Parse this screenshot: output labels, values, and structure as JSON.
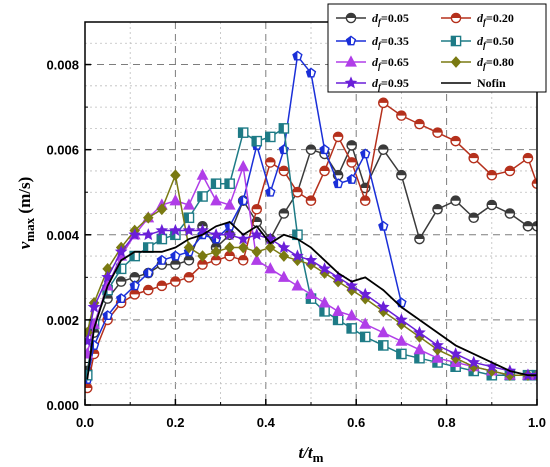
{
  "chart_data": {
    "type": "line",
    "xlabel": "t/t_m",
    "ylabel": "v_max (m/s)",
    "xlim": [
      0.0,
      1.0
    ],
    "ylim": [
      0.0,
      0.009
    ],
    "xticks": [
      0.0,
      0.2,
      0.4,
      0.6,
      0.8,
      1.0
    ],
    "yticks": [
      0.0,
      0.002,
      0.004,
      0.006,
      0.008
    ],
    "xtick_labels": [
      "0.0",
      "0.2",
      "0.4",
      "0.6",
      "0.8",
      "1.0"
    ],
    "ytick_labels": [
      "0.000",
      "0.002",
      "0.004",
      "0.006",
      "0.008"
    ],
    "grid": true,
    "legend_position": "top-right",
    "series": [
      {
        "name": "d_f=0.05",
        "name_var": "d",
        "name_sub": "f",
        "name_val": "=0.05",
        "color": "#3a3a3a",
        "marker": "half-circle",
        "x": [
          0.005,
          0.02,
          0.05,
          0.08,
          0.11,
          0.14,
          0.17,
          0.2,
          0.23,
          0.26,
          0.29,
          0.32,
          0.35,
          0.38,
          0.41,
          0.44,
          0.47,
          0.5,
          0.53,
          0.56,
          0.59,
          0.62,
          0.66,
          0.7,
          0.74,
          0.78,
          0.82,
          0.86,
          0.9,
          0.94,
          0.98,
          1.0
        ],
        "y": [
          0.0008,
          0.0017,
          0.0025,
          0.0029,
          0.003,
          0.0031,
          0.0033,
          0.0033,
          0.0034,
          0.0042,
          0.0037,
          0.004,
          0.0048,
          0.0043,
          0.0039,
          0.0045,
          0.005,
          0.006,
          0.0059,
          0.0054,
          0.0061,
          0.0051,
          0.006,
          0.0054,
          0.0039,
          0.0046,
          0.0048,
          0.0044,
          0.0047,
          0.0045,
          0.0042,
          0.0042
        ]
      },
      {
        "name": "d_f=0.20",
        "name_var": "d",
        "name_sub": "f",
        "name_val": "=0.20",
        "color": "#b5301c",
        "marker": "half-circle",
        "x": [
          0.005,
          0.02,
          0.05,
          0.08,
          0.11,
          0.14,
          0.17,
          0.2,
          0.23,
          0.26,
          0.29,
          0.32,
          0.35,
          0.38,
          0.41,
          0.44,
          0.47,
          0.5,
          0.53,
          0.56,
          0.59,
          0.62,
          0.66,
          0.7,
          0.74,
          0.78,
          0.82,
          0.86,
          0.9,
          0.94,
          0.98,
          1.0
        ],
        "y": [
          0.0004,
          0.0012,
          0.002,
          0.0024,
          0.0026,
          0.0027,
          0.0028,
          0.0029,
          0.003,
          0.0033,
          0.0034,
          0.0035,
          0.0034,
          0.0046,
          0.0057,
          0.0055,
          0.005,
          0.0048,
          0.0055,
          0.0063,
          0.0057,
          0.0048,
          0.0071,
          0.0068,
          0.0066,
          0.0064,
          0.0062,
          0.0058,
          0.0054,
          0.0055,
          0.0058,
          0.0052
        ]
      },
      {
        "name": "d_f=0.35",
        "name_var": "d",
        "name_sub": "f",
        "name_val": "=0.35",
        "color": "#1a2fd8",
        "marker": "pentagon",
        "x": [
          0.005,
          0.02,
          0.05,
          0.08,
          0.11,
          0.14,
          0.17,
          0.2,
          0.23,
          0.26,
          0.29,
          0.32,
          0.35,
          0.38,
          0.41,
          0.44,
          0.47,
          0.5,
          0.53,
          0.56,
          0.59,
          0.62,
          0.66,
          0.7
        ],
        "y": [
          0.0006,
          0.0014,
          0.0021,
          0.0025,
          0.0028,
          0.0031,
          0.0034,
          0.0035,
          0.0036,
          0.004,
          0.0039,
          0.0042,
          0.0048,
          0.0061,
          0.005,
          0.006,
          0.0082,
          0.0078,
          0.006,
          0.0052,
          0.0053,
          0.0059,
          0.0042,
          0.0024
        ]
      },
      {
        "name": "d_f=0.50",
        "name_var": "d",
        "name_sub": "f",
        "name_val": "=0.50",
        "color": "#1e7b86",
        "marker": "half-square",
        "x": [
          0.005,
          0.02,
          0.05,
          0.08,
          0.11,
          0.14,
          0.17,
          0.2,
          0.23,
          0.26,
          0.29,
          0.32,
          0.35,
          0.38,
          0.41,
          0.44,
          0.47,
          0.5,
          0.53,
          0.56,
          0.59,
          0.62,
          0.66,
          0.7,
          0.74,
          0.78,
          0.82,
          0.86,
          0.9,
          0.94,
          0.98,
          1.0
        ],
        "y": [
          0.0007,
          0.0019,
          0.0027,
          0.0032,
          0.0035,
          0.0037,
          0.0039,
          0.004,
          0.0044,
          0.0049,
          0.0052,
          0.0052,
          0.0064,
          0.0062,
          0.0063,
          0.0065,
          0.004,
          0.0025,
          0.0022,
          0.002,
          0.0018,
          0.0016,
          0.0014,
          0.0012,
          0.0011,
          0.001,
          0.0009,
          0.0008,
          0.0007,
          0.0007,
          0.0007,
          0.0007
        ]
      },
      {
        "name": "d_f=0.65",
        "name_var": "d",
        "name_sub": "f",
        "name_val": "=0.65",
        "color": "#b03ee8",
        "marker": "triangle",
        "x": [
          0.005,
          0.02,
          0.05,
          0.08,
          0.11,
          0.14,
          0.17,
          0.2,
          0.23,
          0.26,
          0.29,
          0.32,
          0.35,
          0.38,
          0.41,
          0.44,
          0.47,
          0.5,
          0.53,
          0.56,
          0.59,
          0.62,
          0.66,
          0.7,
          0.74,
          0.78,
          0.82,
          0.86,
          0.9,
          0.94,
          0.98,
          1.0
        ],
        "y": [
          0.0012,
          0.0019,
          0.0028,
          0.0035,
          0.004,
          0.0044,
          0.0047,
          0.0048,
          0.0047,
          0.0054,
          0.0048,
          0.0047,
          0.0056,
          0.0034,
          0.0032,
          0.003,
          0.0028,
          0.0026,
          0.0024,
          0.0022,
          0.0021,
          0.0019,
          0.0017,
          0.0015,
          0.0013,
          0.0011,
          0.001,
          0.0009,
          0.0008,
          0.0007,
          0.0007,
          0.0007
        ]
      },
      {
        "name": "d_f=0.80",
        "name_var": "d",
        "name_sub": "f",
        "name_val": "=0.80",
        "color": "#7a7a12",
        "marker": "diamond",
        "x": [
          0.005,
          0.02,
          0.05,
          0.08,
          0.11,
          0.14,
          0.17,
          0.2,
          0.23,
          0.26,
          0.29,
          0.32,
          0.35,
          0.38,
          0.41,
          0.44,
          0.47,
          0.5,
          0.53,
          0.56,
          0.59,
          0.62,
          0.66,
          0.7,
          0.74,
          0.78,
          0.82,
          0.86,
          0.9,
          0.94,
          0.98,
          1.0
        ],
        "y": [
          0.0017,
          0.0024,
          0.0032,
          0.0037,
          0.0041,
          0.0044,
          0.0046,
          0.0054,
          0.0037,
          0.0035,
          0.0036,
          0.0037,
          0.0037,
          0.0036,
          0.0037,
          0.0035,
          0.0034,
          0.0033,
          0.0031,
          0.0029,
          0.0027,
          0.0025,
          0.0022,
          0.0019,
          0.0016,
          0.0013,
          0.0011,
          0.0009,
          0.0008,
          0.0007,
          0.0007,
          0.0007
        ]
      },
      {
        "name": "d_f=0.95",
        "name_var": "d",
        "name_sub": "f",
        "name_val": "=0.95",
        "color": "#6a1fd8",
        "marker": "star",
        "x": [
          0.005,
          0.02,
          0.05,
          0.08,
          0.11,
          0.14,
          0.17,
          0.2,
          0.23,
          0.26,
          0.29,
          0.32,
          0.35,
          0.38,
          0.41,
          0.44,
          0.47,
          0.5,
          0.53,
          0.56,
          0.59,
          0.62,
          0.66,
          0.7,
          0.74,
          0.78,
          0.82,
          0.86,
          0.9,
          0.94,
          0.98,
          1.0
        ],
        "y": [
          0.0015,
          0.0023,
          0.003,
          0.0036,
          0.004,
          0.004,
          0.0041,
          0.0041,
          0.0041,
          0.0041,
          0.004,
          0.004,
          0.0039,
          0.004,
          0.0039,
          0.0037,
          0.0035,
          0.0034,
          0.0032,
          0.003,
          0.0028,
          0.0026,
          0.0023,
          0.002,
          0.0017,
          0.0014,
          0.0012,
          0.001,
          0.0009,
          0.0008,
          0.0007,
          0.0007
        ]
      },
      {
        "name": "Nofin",
        "color": "#000000",
        "marker": "none",
        "x": [
          0.005,
          0.02,
          0.05,
          0.08,
          0.11,
          0.14,
          0.17,
          0.2,
          0.23,
          0.26,
          0.29,
          0.32,
          0.35,
          0.38,
          0.41,
          0.44,
          0.47,
          0.5,
          0.53,
          0.56,
          0.59,
          0.62,
          0.66,
          0.7,
          0.74,
          0.78,
          0.82,
          0.86,
          0.9,
          0.94,
          0.98,
          1.0
        ],
        "y": [
          0.0006,
          0.0018,
          0.0028,
          0.0034,
          0.0036,
          0.0036,
          0.0036,
          0.0037,
          0.0039,
          0.004,
          0.0042,
          0.0043,
          0.004,
          0.0042,
          0.0038,
          0.004,
          0.0039,
          0.0037,
          0.0034,
          0.0031,
          0.0029,
          0.003,
          0.0027,
          0.0023,
          0.002,
          0.0017,
          0.0014,
          0.0012,
          0.001,
          0.0008,
          0.0007,
          0.0007
        ]
      }
    ]
  }
}
